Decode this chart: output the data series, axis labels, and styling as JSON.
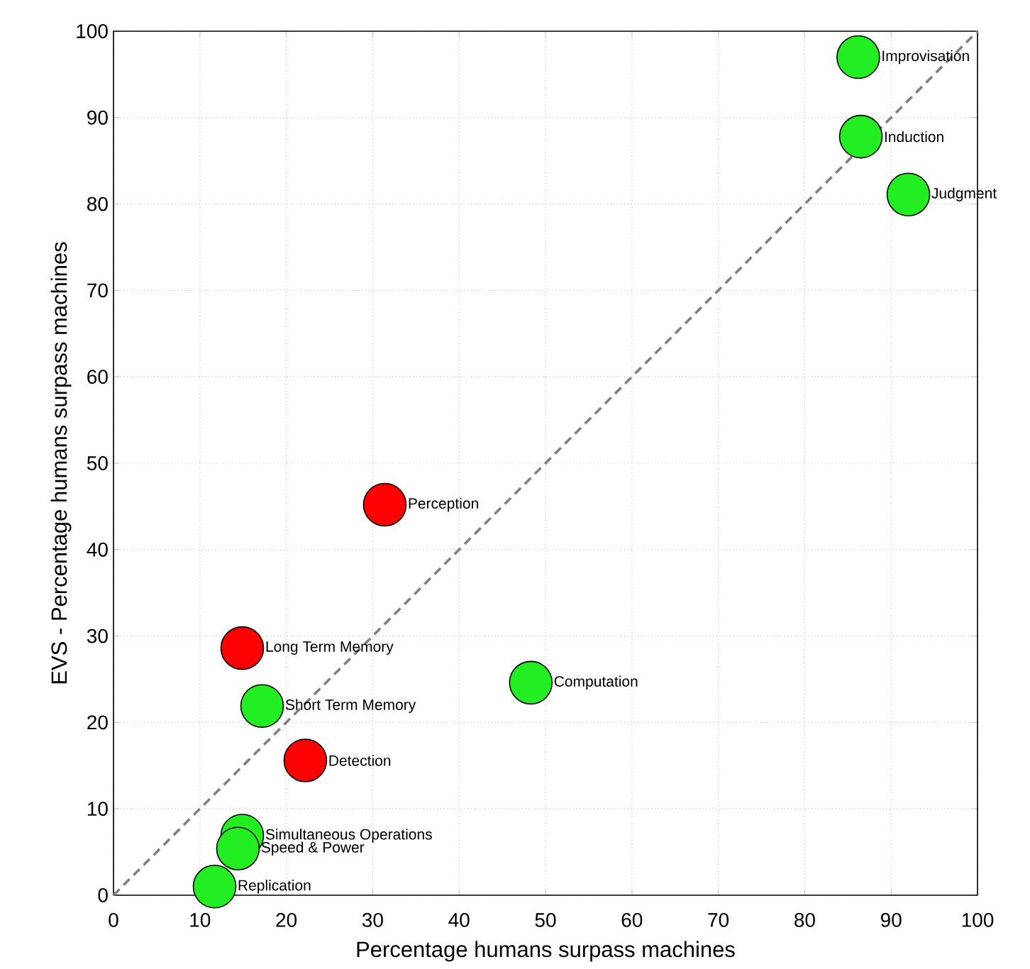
{
  "chart_data": {
    "type": "scatter",
    "xlabel": "Percentage humans surpass machines",
    "ylabel": "EVS - Percentage humans surpass machines",
    "xlim": [
      0,
      100
    ],
    "ylim": [
      0,
      100
    ],
    "xticks": [
      0,
      10,
      20,
      30,
      40,
      50,
      60,
      70,
      80,
      90,
      100
    ],
    "yticks": [
      0,
      10,
      20,
      30,
      40,
      50,
      60,
      70,
      80,
      90,
      100
    ],
    "grid": true,
    "marker": "circle",
    "series": [
      {
        "color": "#22ee22",
        "x": [
          86.2,
          86.5,
          92.0,
          17.2,
          48.3,
          14.9,
          14.4,
          11.7
        ],
        "values": [
          97.0,
          87.8,
          81.1,
          21.9,
          24.6,
          6.9,
          5.4,
          1.0
        ]
      },
      {
        "color": "#ff0000",
        "x": [
          31.4,
          14.9,
          22.2
        ],
        "values": [
          45.2,
          28.6,
          15.6
        ]
      },
      {
        "type": "line",
        "color": "#808080",
        "line_style": "dashed",
        "marker": "none",
        "x": [
          0,
          100
        ],
        "values": [
          0,
          100
        ]
      }
    ],
    "annotations": [
      {
        "text": "Improvisation",
        "x": 86.2,
        "y": 97.0
      },
      {
        "text": "Induction",
        "x": 86.5,
        "y": 87.8
      },
      {
        "text": "Judgment",
        "x": 92.0,
        "y": 81.1
      },
      {
        "text": "Perception",
        "x": 31.4,
        "y": 45.2
      },
      {
        "text": "Long Term Memory",
        "x": 14.9,
        "y": 28.6
      },
      {
        "text": "Short Term Memory",
        "x": 17.2,
        "y": 21.9
      },
      {
        "text": "Computation",
        "x": 48.3,
        "y": 24.6
      },
      {
        "text": "Detection",
        "x": 22.2,
        "y": 15.6
      },
      {
        "text": "Simultaneous Operations",
        "x": 14.9,
        "y": 6.9
      },
      {
        "text": "Speed & Power",
        "x": 14.4,
        "y": 5.4
      },
      {
        "text": "Replication",
        "x": 11.7,
        "y": 1.0
      }
    ]
  }
}
